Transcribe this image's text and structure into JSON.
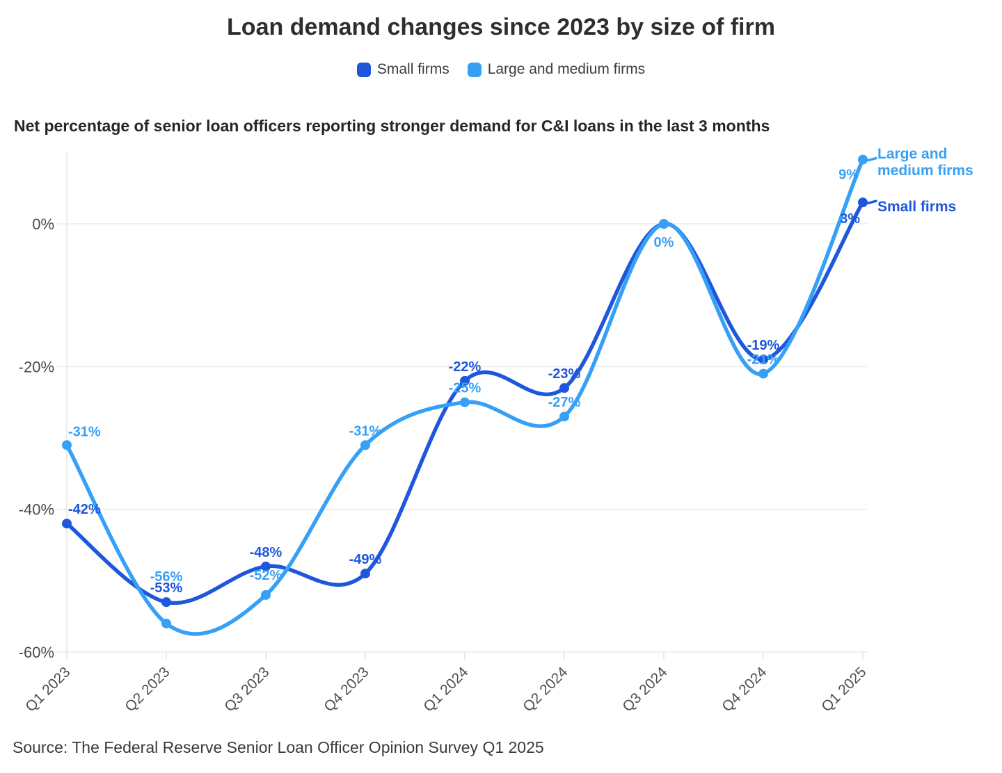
{
  "title": "Loan demand changes since 2023 by size of firm",
  "subtitle": "Net percentage of senior loan officers reporting stronger demand for C&I loans in the last 3 months",
  "source": "Source: The Federal Reserve Senior Loan Officer Opinion Survey Q1 2025",
  "legend": [
    {
      "label": "Small firms",
      "color": "#1E57DB"
    },
    {
      "label": "Large and medium firms",
      "color": "#36A0F6"
    }
  ],
  "end_labels": {
    "large_medium": "Large and medium firms",
    "small": "Small firms"
  },
  "colors": {
    "small_firms": "#1E57DB",
    "large_medium_firms": "#36A0F6",
    "grid": "#ECECEC",
    "axis_line": "#E7E7E7",
    "tick": "#E0E0E0",
    "y_label_text": "#4A4A4A",
    "x_label_text": "#4F4F4F"
  },
  "chart_data": {
    "type": "line",
    "categories": [
      "Q1 2023",
      "Q2 2023",
      "Q3 2023",
      "Q4 2023",
      "Q1 2024",
      "Q2 2024",
      "Q3 2024",
      "Q4 2024",
      "Q1 2025"
    ],
    "series": [
      {
        "name": "Small firms",
        "color": "#1E57DB",
        "values": [
          -42,
          -53,
          -48,
          -49,
          -22,
          -23,
          0,
          -19,
          3
        ]
      },
      {
        "name": "Large and medium firms",
        "color": "#36A0F6",
        "values": [
          -31,
          -56,
          -52,
          -31,
          -25,
          -27,
          0,
          -21,
          9
        ]
      }
    ],
    "point_labels": [
      "-42%",
      "-53%",
      "-48%",
      "-49%",
      "-22%",
      "-23%",
      "0%",
      "-19%",
      "3%",
      "-31%",
      "-56%",
      "-52%",
      "-31%",
      "-25%",
      "-27%",
      "0%",
      "-21%",
      "9%"
    ],
    "y_tick_labels": [
      "0%",
      "-20%",
      "-40%",
      "-60%"
    ],
    "y_ticks": [
      0,
      -20,
      -40,
      -60
    ],
    "ylim": [
      -60,
      10
    ],
    "grid": "horizontal",
    "legend_position": "top",
    "curve": "smooth"
  }
}
